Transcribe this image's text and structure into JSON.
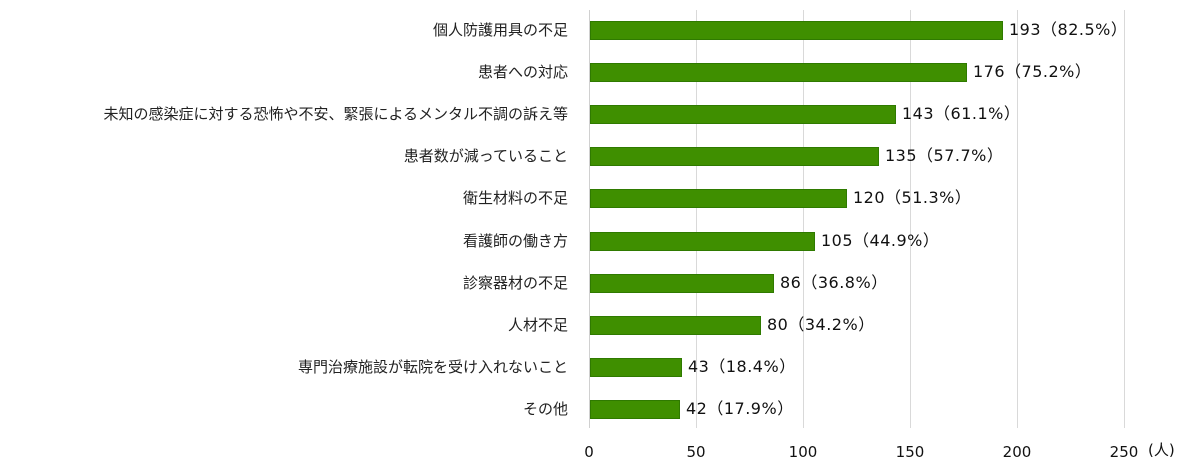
{
  "chart_data": {
    "type": "bar",
    "orientation": "horizontal",
    "title": "",
    "xlabel": "",
    "ylabel": "",
    "unit": "(人)",
    "xlim": [
      0,
      250
    ],
    "x_ticks": [
      0,
      50,
      100,
      150,
      200,
      250
    ],
    "grid": true,
    "legend": null,
    "bar_color": "#3f8f00",
    "categories": [
      "個人防護用具の不足",
      "患者への対応",
      "未知の感染症に対する恐怖や不安、緊張によるメンタル不調の訴え等",
      "患者数が減っていること",
      "衛生材料の不足",
      "看護師の働き方",
      "診察器材の不足",
      "人材不足",
      "専門治療施設が転院を受け入れないこと",
      "その他"
    ],
    "values": [
      193,
      176,
      143,
      135,
      120,
      105,
      86,
      80,
      43,
      42
    ],
    "percentages": [
      82.5,
      75.2,
      61.1,
      57.7,
      51.3,
      44.9,
      36.8,
      34.2,
      18.4,
      17.9
    ],
    "data_labels": [
      "193（82.5%）",
      "176（75.2%）",
      "143（61.1%）",
      "135（57.7%）",
      "120（51.3%）",
      "105（44.9%）",
      "86（36.8%）",
      "80（34.2%）",
      "43（18.4%）",
      "42（17.9%）"
    ]
  },
  "axis": {
    "ticks": [
      "0",
      "50",
      "100",
      "150",
      "200",
      "250"
    ],
    "unit": "(人)"
  }
}
